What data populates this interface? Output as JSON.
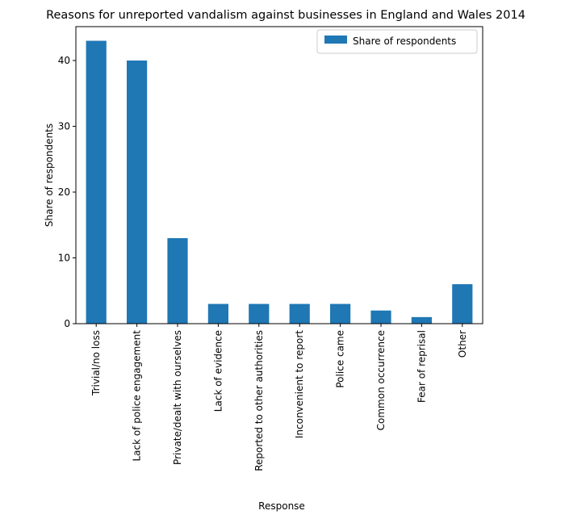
{
  "chart_data": {
    "type": "bar",
    "title": "Reasons for unreported vandalism against businesses in England and Wales 2014",
    "xlabel": "Response",
    "ylabel": "Share of respondents",
    "categories": [
      "Trivial/no loss",
      "Lack of police engagement",
      "Private/dealt with ourselves",
      "Lack of evidence",
      "Reported to other authorities",
      "Inconvenient to report",
      "Police came",
      "Common occurrence",
      "Fear of reprisal",
      "Other"
    ],
    "series": [
      {
        "name": "Share of respondents",
        "values": [
          43,
          40,
          13,
          3,
          3,
          3,
          3,
          2,
          1,
          6
        ]
      }
    ],
    "ylim": [
      0,
      45.15
    ],
    "yticks": [
      0,
      10,
      20,
      30,
      40
    ],
    "legend": "top-right",
    "grid": false,
    "colors": {
      "bar": "#1f77b4"
    }
  }
}
